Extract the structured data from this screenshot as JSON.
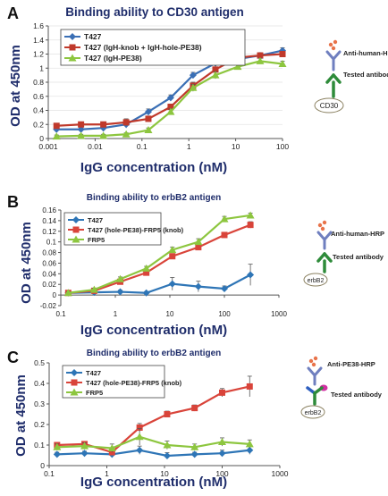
{
  "panels": [
    {
      "letter": "A",
      "schematic": {
        "detect_label": "Anti-human-HRP",
        "tested_label": "Tested antibody",
        "antigen_label": "CD30",
        "detect_kind": "Y"
      },
      "colors": {
        "axis_label": "#1f2d6b"
      }
    },
    {
      "letter": "B",
      "schematic": {
        "detect_label": "Anti-human-HRP",
        "tested_label": "Tested antibody",
        "antigen_label": "erbB2",
        "detect_kind": "Y"
      },
      "colors": {
        "axis_label": "#1f2d6b"
      }
    },
    {
      "letter": "C",
      "schematic": {
        "detect_label": "Anti-PE38-HRP",
        "tested_label": "Tested antibody",
        "antigen_label": "erbB2",
        "detect_kind": "Y"
      },
      "colors": {
        "axis_label": "#1f2d6b"
      }
    }
  ],
  "chart_data": [
    {
      "type": "line",
      "title": "Binding ability to CD30 antigen",
      "xlabel": "IgG concentration (nM)",
      "ylabel": "OD at 450nm",
      "xscale": "log",
      "xlim": [
        0.001,
        100
      ],
      "ylim": [
        0,
        1.6
      ],
      "x_ticks": [
        "0.001",
        "0.01",
        "0.1",
        "1",
        "10",
        "100"
      ],
      "y_ticks": [
        "0",
        "0.2",
        "0.4",
        "0.6",
        "0.8",
        "1",
        "1.2",
        "1.4",
        "1.6"
      ],
      "legend_position": "top-left",
      "series": [
        {
          "name": "T427",
          "color": "#3a6fb5",
          "marker": "diamond",
          "x": [
            0.0015,
            0.005,
            0.015,
            0.046,
            0.137,
            0.41,
            1.23,
            3.7,
            11.1,
            33.3,
            100
          ],
          "y": [
            0.13,
            0.13,
            0.15,
            0.2,
            0.38,
            0.58,
            0.9,
            1.07,
            1.13,
            1.18,
            1.25
          ],
          "err": [
            0.03,
            0.02,
            0.02,
            0.05,
            0.04,
            0.04,
            0.04,
            0.05,
            0.04,
            0.04,
            0.04
          ]
        },
        {
          "name": "T427 (IgH-knob + IgH-hole-PE38)",
          "color": "#c0392b",
          "marker": "square",
          "x": [
            0.0015,
            0.005,
            0.015,
            0.046,
            0.137,
            0.41,
            1.23,
            3.7,
            11.1,
            33.3,
            100
          ],
          "y": [
            0.18,
            0.2,
            0.2,
            0.23,
            0.28,
            0.45,
            0.75,
            0.98,
            1.15,
            1.18,
            1.2
          ],
          "err": [
            0.03,
            0.03,
            0.03,
            0.05,
            0.04,
            0.04,
            0.05,
            0.07,
            0.05,
            0.04,
            0.04
          ]
        },
        {
          "name": "T427 (IgH-PE38)",
          "color": "#8dc63f",
          "marker": "triangle",
          "x": [
            0.0015,
            0.005,
            0.015,
            0.046,
            0.137,
            0.41,
            1.23,
            3.7,
            11.1,
            33.3,
            100
          ],
          "y": [
            0.03,
            0.04,
            0.04,
            0.06,
            0.12,
            0.38,
            0.72,
            0.9,
            1.02,
            1.1,
            1.06
          ],
          "err": [
            0.02,
            0.02,
            0.02,
            0.02,
            0.03,
            0.04,
            0.05,
            0.05,
            0.04,
            0.04,
            0.04
          ]
        }
      ]
    },
    {
      "type": "line",
      "title": "Binding ability to erbB2 antigen",
      "xlabel": "IgG concentration (nM)",
      "ylabel": "OD at 450nm",
      "xscale": "log",
      "xlim": [
        0.1,
        1000
      ],
      "ylim": [
        -0.02,
        0.16
      ],
      "x_ticks": [
        "0.1",
        "1",
        "10",
        "100",
        "1000"
      ],
      "y_ticks": [
        "-0.02",
        "0",
        "0.02",
        "0.04",
        "0.06",
        "0.08",
        "0.1",
        "0.12",
        "0.14",
        "0.16"
      ],
      "legend_position": "top-left",
      "series": [
        {
          "name": "T427",
          "color": "#2e75b6",
          "marker": "diamond",
          "x": [
            0.137,
            0.41,
            1.23,
            3.7,
            11.1,
            33.3,
            100,
            300
          ],
          "y": [
            0.004,
            0.005,
            0.006,
            0.004,
            0.021,
            0.016,
            0.012,
            0.038
          ],
          "err": [
            0.004,
            0.003,
            0.003,
            0.002,
            0.012,
            0.01,
            0.005,
            0.02
          ]
        },
        {
          "name": "T427 (hole-PE38)-FRP5 (knob)",
          "color": "#d9443a",
          "marker": "square",
          "x": [
            0.137,
            0.41,
            1.23,
            3.7,
            11.1,
            33.3,
            100,
            300
          ],
          "y": [
            0.004,
            0.008,
            0.025,
            0.042,
            0.073,
            0.09,
            0.113,
            0.132
          ],
          "err": [
            0.002,
            0.002,
            0.003,
            0.003,
            0.004,
            0.004,
            0.005,
            0.006
          ]
        },
        {
          "name": "FRP5",
          "color": "#8dc63f",
          "marker": "triangle",
          "x": [
            0.137,
            0.41,
            1.23,
            3.7,
            11.1,
            33.3,
            100,
            300
          ],
          "y": [
            0.004,
            0.01,
            0.03,
            0.05,
            0.085,
            0.1,
            0.143,
            0.15
          ],
          "err": [
            0.002,
            0.003,
            0.004,
            0.004,
            0.005,
            0.006,
            0.005,
            0.004
          ]
        }
      ]
    },
    {
      "type": "line",
      "title": "Binding ability to erbB2 antigen",
      "xlabel": "IgG concentration (nM)",
      "ylabel": "OD at 450nm",
      "xscale": "log",
      "xlim": [
        0.1,
        1000
      ],
      "ylim": [
        0,
        0.5
      ],
      "x_ticks": [
        "0.1",
        "1",
        "10",
        "100",
        "1000"
      ],
      "y_ticks": [
        "0",
        "0.1",
        "0.2",
        "0.3",
        "0.4",
        "0.5"
      ],
      "legend_position": "top-left",
      "series": [
        {
          "name": "T427",
          "color": "#2e75b6",
          "marker": "diamond",
          "x": [
            0.137,
            0.41,
            1.23,
            3.7,
            11.1,
            33.3,
            100,
            300
          ],
          "y": [
            0.055,
            0.06,
            0.055,
            0.075,
            0.048,
            0.055,
            0.06,
            0.075
          ],
          "err": [
            0.01,
            0.01,
            0.01,
            0.02,
            0.015,
            0.01,
            0.015,
            0.02
          ]
        },
        {
          "name": "T427 (hole-PE38)-FRP5 (knob)",
          "color": "#d9443a",
          "marker": "square",
          "x": [
            0.137,
            0.41,
            1.23,
            3.7,
            11.1,
            33.3,
            100,
            300
          ],
          "y": [
            0.1,
            0.105,
            0.065,
            0.185,
            0.25,
            0.28,
            0.355,
            0.385
          ],
          "err": [
            0.01,
            0.01,
            0.01,
            0.02,
            0.015,
            0.015,
            0.02,
            0.05
          ]
        },
        {
          "name": "FRP5",
          "color": "#8dc63f",
          "marker": "triangle",
          "x": [
            0.137,
            0.41,
            1.23,
            3.7,
            11.1,
            33.3,
            100,
            300
          ],
          "y": [
            0.09,
            0.095,
            0.085,
            0.14,
            0.1,
            0.09,
            0.115,
            0.105
          ],
          "err": [
            0.015,
            0.015,
            0.02,
            0.04,
            0.02,
            0.015,
            0.02,
            0.02
          ]
        }
      ]
    }
  ]
}
